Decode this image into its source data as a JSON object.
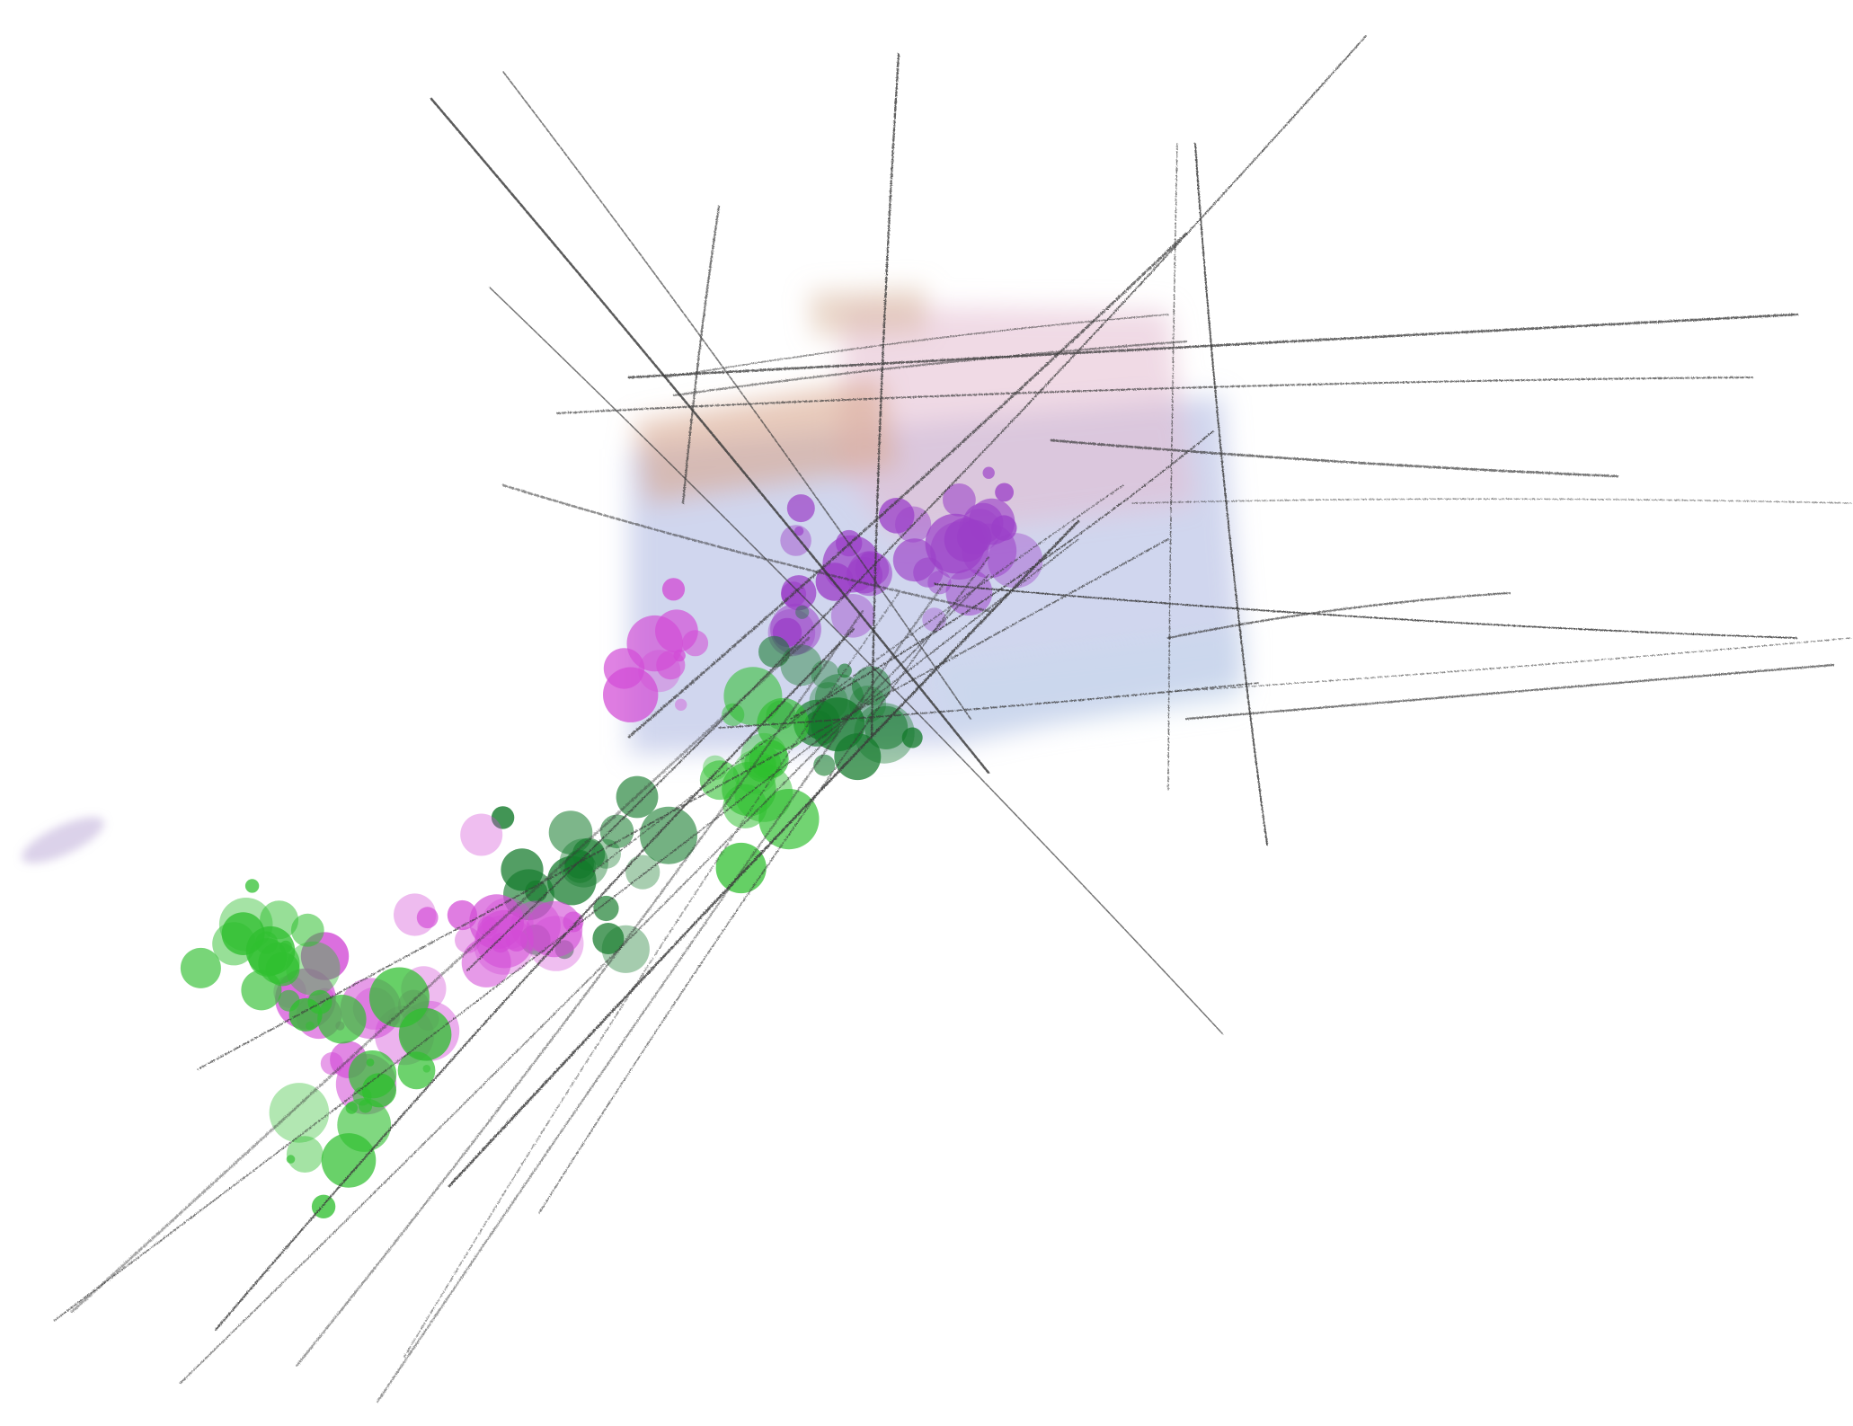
{
  "artwork": {
    "kind": "mixed-media sketch",
    "background": "#ffffff",
    "palette": {
      "pencil": "#3a3a3a",
      "wash_lavender": "#a9b4e0",
      "wash_pink": "#e4bcd0",
      "wash_peach": "#d8a890",
      "wash_light_blue": "#c8d8ec",
      "splatter_green": "#2fbf2f",
      "splatter_dark_green": "#137a2a",
      "splatter_magenta": "#d24bd6",
      "splatter_purple": "#9b3fc8",
      "faint_violet": "#b7a6d6"
    },
    "elements": [
      "watercolor-wash-block",
      "pencil-hatching",
      "paint-splatter-trail",
      "faint-violet-smudge"
    ]
  }
}
